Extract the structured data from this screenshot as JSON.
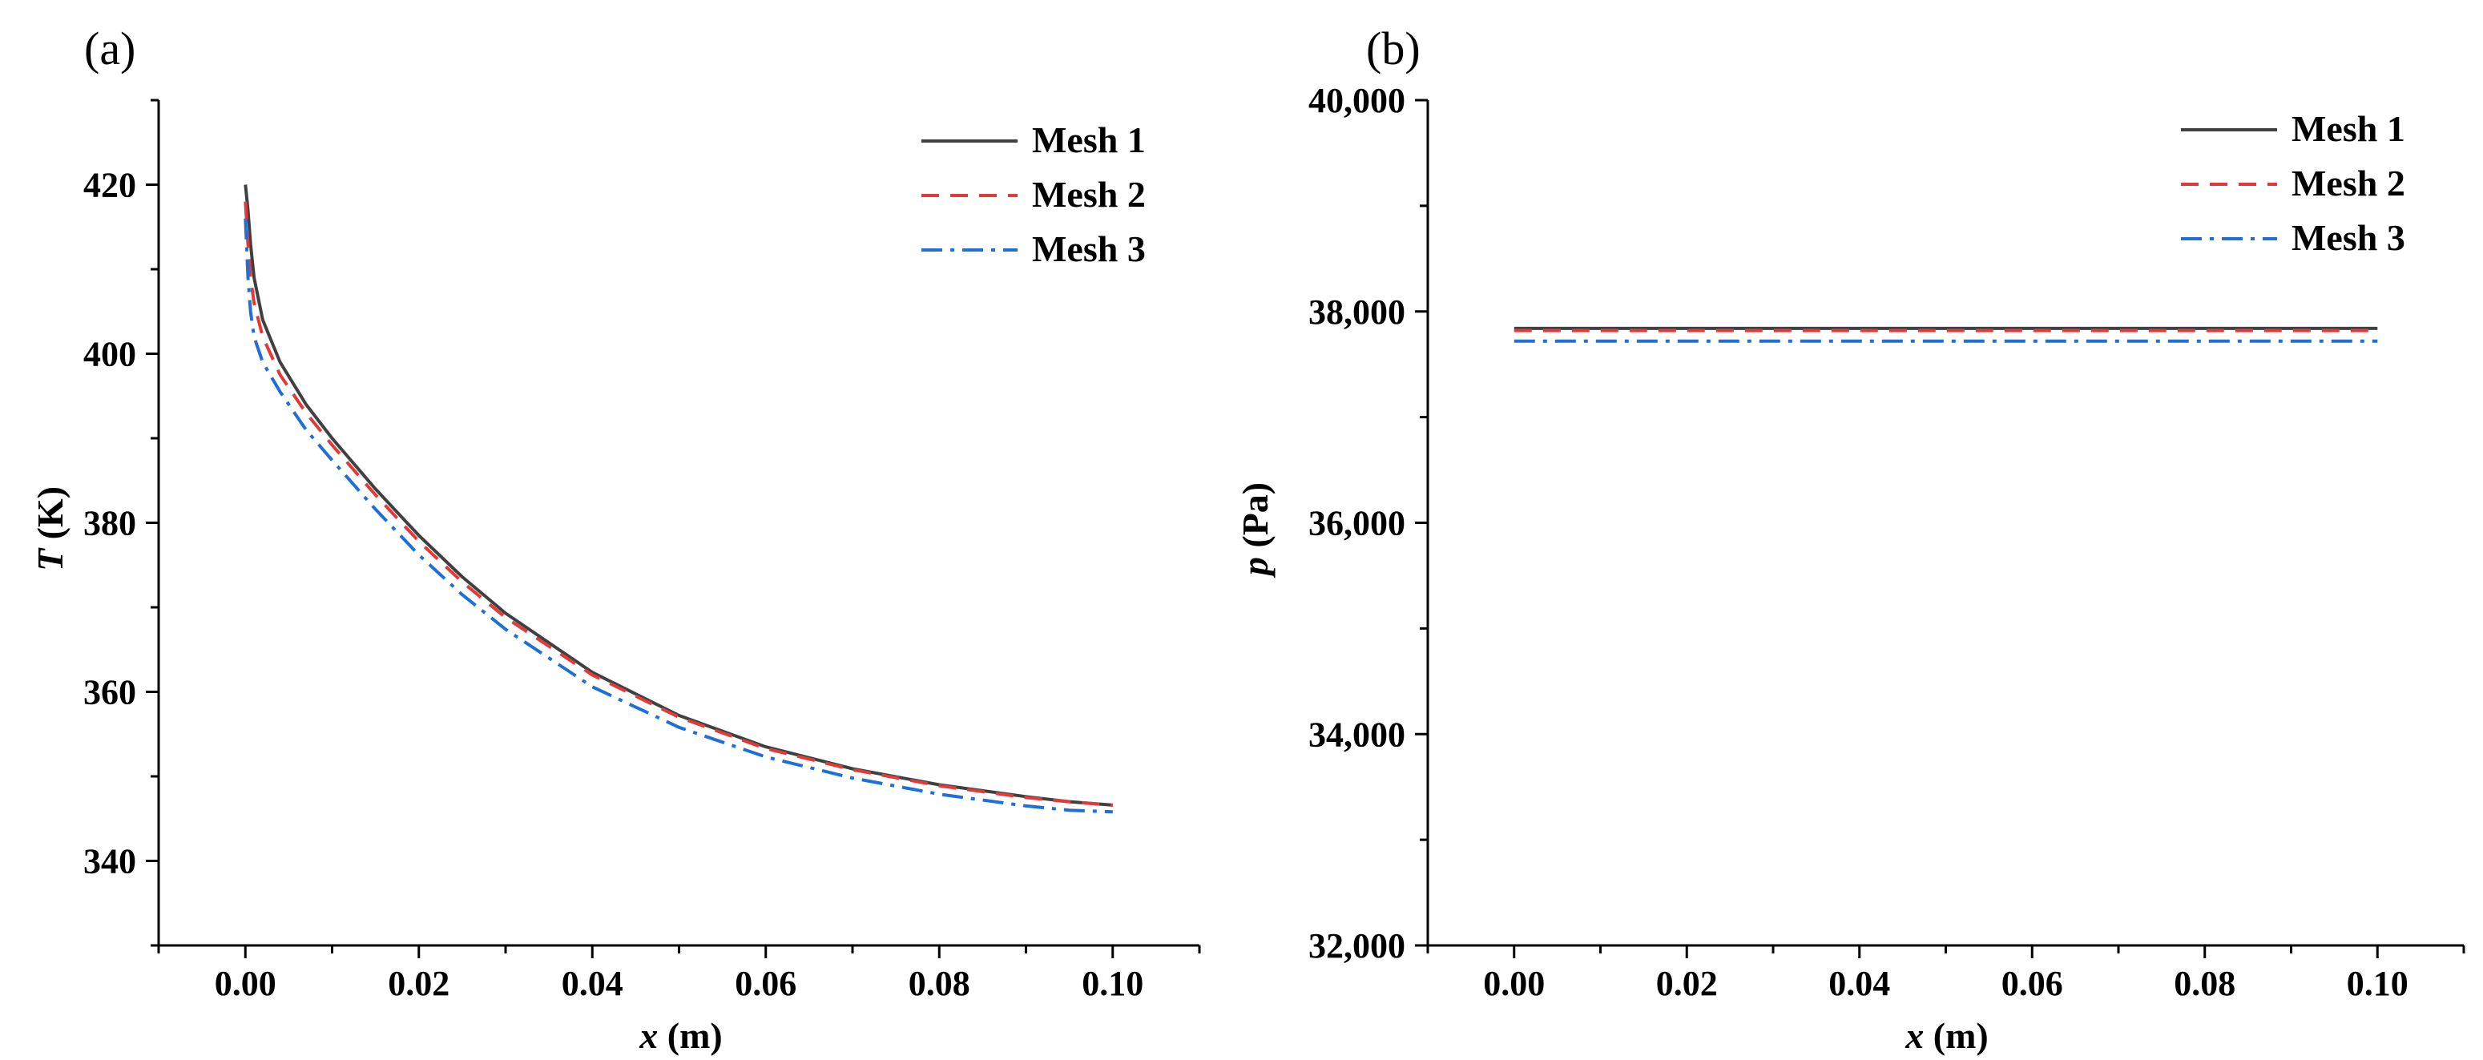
{
  "chart_data": [
    {
      "panel_label": "(a)",
      "type": "line",
      "xlabel_var": "x",
      "xlabel_unit": "(m)",
      "ylabel_var": "T",
      "ylabel_unit": "(K)",
      "xlim": [
        -0.01,
        0.11
      ],
      "ylim": [
        330,
        430
      ],
      "xticks": [
        0.0,
        0.02,
        0.04,
        0.06,
        0.08,
        0.1
      ],
      "xtick_labels": [
        "0.00",
        "0.02",
        "0.04",
        "0.06",
        "0.08",
        "0.10"
      ],
      "yticks": [
        340,
        360,
        380,
        400,
        420
      ],
      "ytick_labels": [
        "340",
        "360",
        "380",
        "400",
        "420"
      ],
      "legend_position": "top-right",
      "series": [
        {
          "name": "Mesh 1",
          "color": "#404040",
          "dash": "solid",
          "x": [
            0.0,
            0.0003,
            0.0006,
            0.001,
            0.002,
            0.004,
            0.007,
            0.01,
            0.015,
            0.02,
            0.025,
            0.03,
            0.04,
            0.05,
            0.06,
            0.07,
            0.08,
            0.09,
            0.095,
            0.1
          ],
          "y": [
            420.0,
            417.0,
            413.0,
            409.0,
            404.0,
            399.0,
            394.0,
            390.0,
            384.0,
            378.5,
            373.6,
            369.3,
            362.3,
            357.2,
            353.5,
            350.9,
            349.0,
            347.6,
            347.0,
            346.6
          ]
        },
        {
          "name": "Mesh 2",
          "color": "#e03a3a",
          "dash": "dashed",
          "x": [
            0.0,
            0.0003,
            0.0006,
            0.001,
            0.002,
            0.004,
            0.007,
            0.01,
            0.015,
            0.02,
            0.025,
            0.03,
            0.04,
            0.05,
            0.06,
            0.07,
            0.08,
            0.09,
            0.095,
            0.1
          ],
          "y": [
            418.0,
            413.0,
            409.0,
            406.0,
            402.0,
            397.5,
            393.0,
            389.2,
            383.3,
            377.8,
            373.0,
            368.8,
            362.0,
            357.0,
            353.3,
            350.8,
            348.9,
            347.5,
            347.0,
            346.6
          ]
        },
        {
          "name": "Mesh 3",
          "color": "#1f6fd6",
          "dash": "dashdot",
          "x": [
            0.0,
            0.0003,
            0.0006,
            0.001,
            0.002,
            0.004,
            0.007,
            0.01,
            0.015,
            0.02,
            0.025,
            0.03,
            0.04,
            0.05,
            0.06,
            0.07,
            0.08,
            0.09,
            0.095,
            0.1
          ],
          "y": [
            416.0,
            409.0,
            405.0,
            402.0,
            399.0,
            395.5,
            391.0,
            387.4,
            381.6,
            376.2,
            371.5,
            367.4,
            360.6,
            355.8,
            352.3,
            349.8,
            347.9,
            346.5,
            346.0,
            345.8
          ]
        }
      ]
    },
    {
      "panel_label": "(b)",
      "type": "line",
      "xlabel_var": "x",
      "xlabel_unit": "(m)",
      "ylabel_var": "p",
      "ylabel_unit": "(Pa)",
      "xlim": [
        -0.01,
        0.11
      ],
      "ylim": [
        32000,
        40000
      ],
      "xticks": [
        0.0,
        0.02,
        0.04,
        0.06,
        0.08,
        0.1
      ],
      "xtick_labels": [
        "0.00",
        "0.02",
        "0.04",
        "0.06",
        "0.08",
        "0.10"
      ],
      "yticks": [
        32000,
        34000,
        36000,
        38000,
        40000
      ],
      "ytick_labels": [
        "32,000",
        "34,000",
        "36,000",
        "38,000",
        "40,000"
      ],
      "legend_position": "top-right",
      "series": [
        {
          "name": "Mesh 1",
          "color": "#404040",
          "dash": "solid",
          "x": [
            0.0,
            0.1
          ],
          "y": [
            37840,
            37840
          ]
        },
        {
          "name": "Mesh 2",
          "color": "#e03a3a",
          "dash": "dashed",
          "x": [
            0.0,
            0.1
          ],
          "y": [
            37820,
            37820
          ]
        },
        {
          "name": "Mesh 3",
          "color": "#1f6fd6",
          "dash": "dashdot",
          "x": [
            0.0,
            0.1
          ],
          "y": [
            37720,
            37720
          ]
        }
      ]
    }
  ]
}
